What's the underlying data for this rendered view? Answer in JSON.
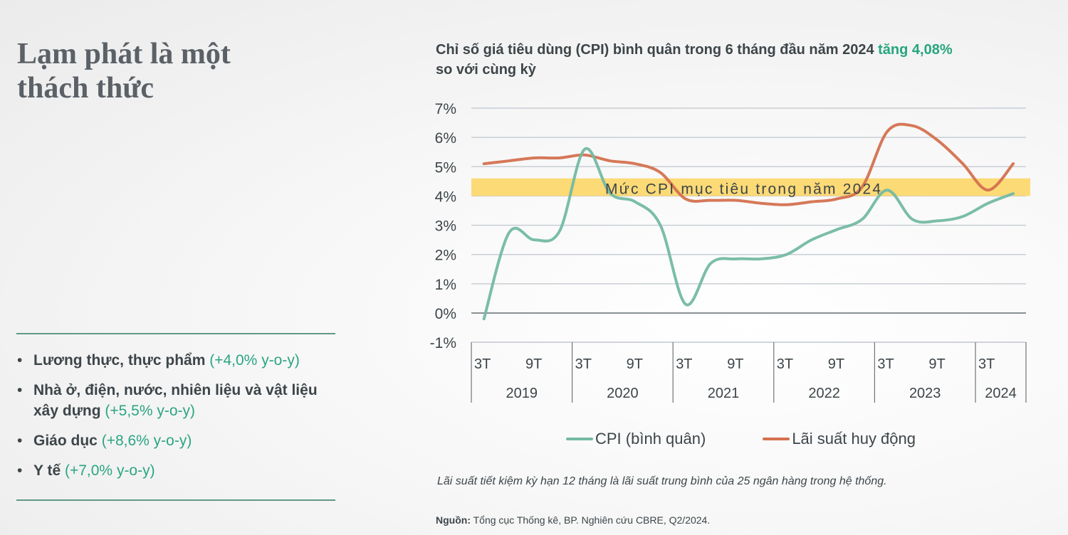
{
  "left_panel": {
    "title_line1": "Lạm phát là một",
    "title_line2": "thách thức",
    "bullets": [
      {
        "label": "Lương thực, thực phẩm",
        "change": "(+4,0% y-o-y)"
      },
      {
        "label": "Nhà ở, điện, nước, nhiên liệu và vật liệu xây dựng",
        "change": "(+5,5% y-o-y)"
      },
      {
        "label": "Giáo dục",
        "change": "(+8,6% y-o-y)"
      },
      {
        "label": "Y tế",
        "change": "(+7,0% y-o-y)"
      }
    ],
    "bullet_glyph": "•"
  },
  "chart_header": {
    "title_main": "Chỉ số giá tiêu dùng (CPI) bình quân trong 6 tháng đầu năm 2024 ",
    "title_highlight": "tăng 4,08%",
    "title_line2": "so với cùng kỳ"
  },
  "colors": {
    "cpi": "#74b9a4",
    "interest": "#d4714f",
    "band": "#fcd667",
    "highlight": "#27a57e",
    "grid": "#c9ced3"
  },
  "chart_data": {
    "type": "line",
    "title": "Chỉ số giá tiêu dùng (CPI) bình quân trong 6 tháng đầu năm 2024 tăng 4,08% so với cùng kỳ",
    "xlabel": "",
    "ylabel": "",
    "ylim": [
      -1,
      7
    ],
    "yticks": [
      7,
      6,
      5,
      4,
      3,
      2,
      1,
      0,
      -1
    ],
    "ytick_labels": [
      "7%",
      "6%",
      "5%",
      "4%",
      "3%",
      "2%",
      "1%",
      "0%",
      "-1%"
    ],
    "grid": true,
    "x_groups": [
      {
        "year": "2019",
        "ticks": [
          "3T",
          "9T"
        ]
      },
      {
        "year": "2020",
        "ticks": [
          "3T",
          "9T"
        ]
      },
      {
        "year": "2021",
        "ticks": [
          "3T",
          "9T"
        ]
      },
      {
        "year": "2022",
        "ticks": [
          "3T",
          "9T"
        ]
      },
      {
        "year": "2023",
        "ticks": [
          "3T",
          "9T"
        ]
      },
      {
        "year": "2024",
        "ticks": [
          "3T"
        ]
      }
    ],
    "x": [
      "2019-03",
      "2019-06",
      "2019-09",
      "2019-12",
      "2020-03",
      "2020-06",
      "2020-09",
      "2020-12",
      "2021-03",
      "2021-06",
      "2021-09",
      "2021-12",
      "2022-03",
      "2022-06",
      "2022-09",
      "2022-12",
      "2023-03",
      "2023-06",
      "2023-09",
      "2023-12",
      "2024-03",
      "2024-06"
    ],
    "series": [
      {
        "name": "CPI (bình quân)",
        "values": [
          -0.2,
          2.75,
          2.5,
          2.8,
          5.6,
          4.1,
          3.8,
          3.0,
          0.3,
          1.7,
          1.85,
          1.85,
          2.0,
          2.5,
          2.85,
          3.2,
          4.2,
          3.2,
          3.15,
          3.3,
          3.75,
          4.08
        ]
      },
      {
        "name": "Lãi suất huy động",
        "values": [
          5.1,
          5.2,
          5.3,
          5.3,
          5.4,
          5.2,
          5.1,
          4.8,
          3.9,
          3.85,
          3.85,
          3.75,
          3.7,
          3.8,
          3.9,
          4.3,
          6.2,
          6.4,
          5.9,
          5.1,
          4.2,
          5.1
        ]
      }
    ],
    "target_band": {
      "from": 4.0,
      "to": 4.6,
      "label": "Mức CPI mục tiêu trong năm 2024"
    },
    "legend": "bottom"
  },
  "footer": {
    "note": "Lãi suất tiết kiệm kỳ hạn 12 tháng là lãi suất trung bình của 25 ngân hàng trong hệ thống.",
    "source_label": "Nguồn:",
    "source_text": " Tổng cục Thống kê, BP. Nghiên cứu CBRE, Q2/2024."
  }
}
